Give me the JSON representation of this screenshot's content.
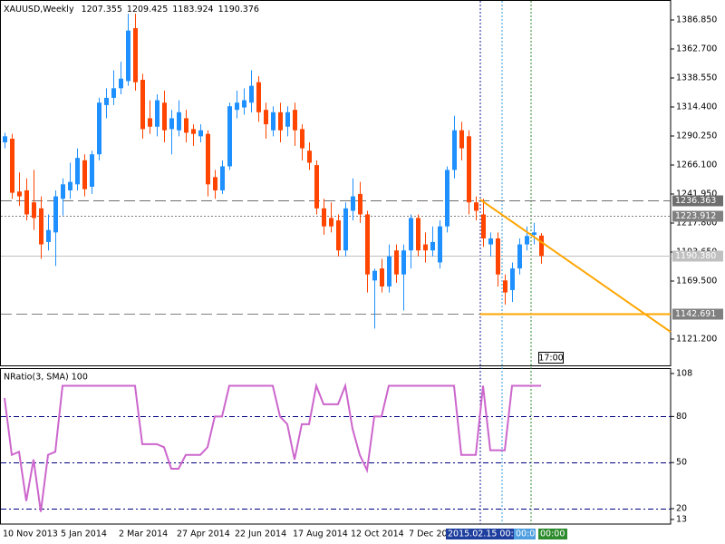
{
  "chart_data": [
    {
      "type": "candlestick",
      "title": "XAUUSD,Weekly",
      "categories": [
        "10 Nov 2013",
        null,
        null,
        null,
        null,
        null,
        null,
        null,
        "5 Jan 2014",
        null,
        null,
        null,
        null,
        null,
        null,
        null,
        "2 Mar 2014",
        null,
        null,
        null,
        null,
        null,
        null,
        null,
        "27 Apr 2014",
        null,
        null,
        null,
        null,
        null,
        null,
        null,
        "22 Jun 2014",
        null,
        null,
        null,
        null,
        null,
        null,
        null,
        "17 Aug 2014",
        null,
        null,
        null,
        null,
        null,
        null,
        null,
        "12 Oct 2014",
        null,
        null,
        null,
        null,
        null,
        null,
        null,
        "7 Dec 2014",
        null,
        null,
        null,
        null,
        null,
        null,
        null,
        null,
        null,
        null,
        null,
        null,
        null,
        null,
        null,
        null,
        null,
        null
      ],
      "open": [
        1285,
        1288,
        1244,
        1245,
        1235,
        1230,
        1202,
        1210,
        1238,
        1245,
        1250,
        1270,
        1248,
        1275,
        1316,
        1322,
        1330,
        1336,
        1380,
        1337,
        1305,
        1298,
        1318,
        1296,
        1295,
        1305,
        1296,
        1290,
        1292,
        1256,
        1245,
        1265,
        1312,
        1314,
        1318,
        1335,
        1312,
        1295,
        1310,
        1298,
        1312,
        1296,
        1278,
        1266,
        1230,
        1222,
        1220,
        1195,
        1228,
        1242,
        1225,
        1170,
        1180,
        1165,
        1195,
        1175,
        1195,
        1222,
        1200,
        1195,
        1185,
        1215,
        1262,
        1295,
        1290,
        1235,
        1225,
        1200,
        1205,
        1170,
        1162,
        1180,
        1200,
        1208,
        1207.355
      ],
      "high": [
        1293,
        1292,
        1260,
        1255,
        1262,
        1240,
        1225,
        1245,
        1255,
        1268,
        1280,
        1275,
        1278,
        1322,
        1330,
        1345,
        1352,
        1392,
        1392,
        1342,
        1320,
        1325,
        1328,
        1312,
        1320,
        1312,
        1300,
        1300,
        1295,
        1262,
        1270,
        1318,
        1328,
        1330,
        1345,
        1340,
        1318,
        1315,
        1318,
        1315,
        1318,
        1300,
        1285,
        1270,
        1238,
        1235,
        1225,
        1235,
        1255,
        1252,
        1228,
        1180,
        1188,
        1200,
        1200,
        1200,
        1225,
        1225,
        1210,
        1215,
        1220,
        1265,
        1307,
        1302,
        1295,
        1240,
        1238,
        1210,
        1210,
        1175,
        1185,
        1205,
        1215,
        1218,
        1209.425
      ],
      "low": [
        1280,
        1238,
        1232,
        1220,
        1212,
        1188,
        1195,
        1182,
        1224,
        1238,
        1245,
        1240,
        1242,
        1270,
        1305,
        1316,
        1325,
        1332,
        1328,
        1288,
        1292,
        1290,
        1285,
        1275,
        1290,
        1285,
        1282,
        1285,
        1240,
        1238,
        1242,
        1262,
        1305,
        1308,
        1310,
        1302,
        1288,
        1290,
        1285,
        1290,
        1282,
        1270,
        1262,
        1225,
        1208,
        1210,
        1190,
        1190,
        1220,
        1218,
        1160,
        1130,
        1160,
        1160,
        1168,
        1145,
        1180,
        1190,
        1185,
        1190,
        1180,
        1210,
        1255,
        1270,
        1225,
        1220,
        1198,
        1190,
        1165,
        1150,
        1152,
        1175,
        1195,
        1200,
        1183.924
      ],
      "close": [
        1290,
        1243,
        1240,
        1225,
        1222,
        1200,
        1212,
        1240,
        1250,
        1252,
        1272,
        1246,
        1275,
        1318,
        1322,
        1330,
        1338,
        1378,
        1335,
        1296,
        1298,
        1320,
        1295,
        1305,
        1310,
        1293,
        1292,
        1295,
        1250,
        1245,
        1265,
        1315,
        1318,
        1320,
        1332,
        1310,
        1300,
        1310,
        1295,
        1310,
        1295,
        1280,
        1268,
        1230,
        1215,
        1215,
        1195,
        1230,
        1240,
        1225,
        1175,
        1178,
        1165,
        1190,
        1175,
        1195,
        1222,
        1195,
        1195,
        1202,
        1215,
        1262,
        1295,
        1280,
        1235,
        1228,
        1205,
        1205,
        1175,
        1160,
        1180,
        1200,
        1207,
        1210,
        1190.376
      ],
      "up_color": "#1e90ff",
      "down_color": "#ff4500",
      "ylim": [
        1099.3,
        1403.45
      ],
      "yticks": [
        {
          "value": 1386.85,
          "label": "1386.850"
        },
        {
          "value": 1362.7,
          "label": "1362.700"
        },
        {
          "value": 1338.55,
          "label": "1338.550"
        },
        {
          "value": 1314.4,
          "label": "1314.400"
        },
        {
          "value": 1290.25,
          "label": "1290.250"
        },
        {
          "value": 1266.1,
          "label": "1266.100"
        },
        {
          "value": 1241.95,
          "label": "1241.950"
        },
        {
          "value": 1217.8,
          "label": "1217.800"
        },
        {
          "value": 1193.65,
          "label": "1193.650"
        },
        {
          "value": 1169.5,
          "label": "1169.500"
        },
        {
          "value": 1121.2,
          "label": "1121.200"
        }
      ],
      "levels": [
        1236.363,
        1223.912,
        {
          "value": 1190.38,
          "label": "1190.380"
        },
        1142.691
      ],
      "level_styles": [
        "dashed",
        "dotted",
        "solid",
        "dashed"
      ],
      "level_colors": [
        "#6e6e6e",
        "#808080",
        "#c0c0c0",
        "#808080"
      ],
      "trend_line": {
        "x": [
          65.6,
          91.9
        ],
        "values": [
          1237.4,
          1127.2
        ],
        "color": "#ffa500"
      },
      "cursor_label": "17:00",
      "time_labels": [
        "2015.02.15 00:00",
        "00:00",
        "00:00"
      ]
    },
    {
      "type": "line",
      "title": "NRatio(3, SMA) 100",
      "values": [
        92,
        55,
        57,
        25,
        52,
        18,
        55,
        57,
        100,
        100,
        100,
        100,
        100,
        100,
        100,
        100,
        100,
        100,
        100,
        62,
        62,
        62,
        60,
        46,
        46,
        55,
        55,
        55,
        60,
        80,
        80,
        100,
        100,
        100,
        100,
        100,
        100,
        100,
        80,
        75,
        52,
        75,
        75,
        100,
        88,
        88,
        88,
        100,
        72,
        55,
        45,
        80,
        80,
        100,
        100,
        100,
        100,
        100,
        100,
        100,
        100,
        100,
        100,
        55,
        55,
        55,
        100,
        58,
        58,
        58,
        100,
        100,
        100,
        100,
        100
      ],
      "color": "#cc66cc",
      "ylim": [
        10,
        111.5
      ],
      "yticks": [
        108,
        80,
        50,
        20,
        13
      ],
      "levels": [
        80,
        50,
        20
      ],
      "level_color": "#000080"
    }
  ]
}
